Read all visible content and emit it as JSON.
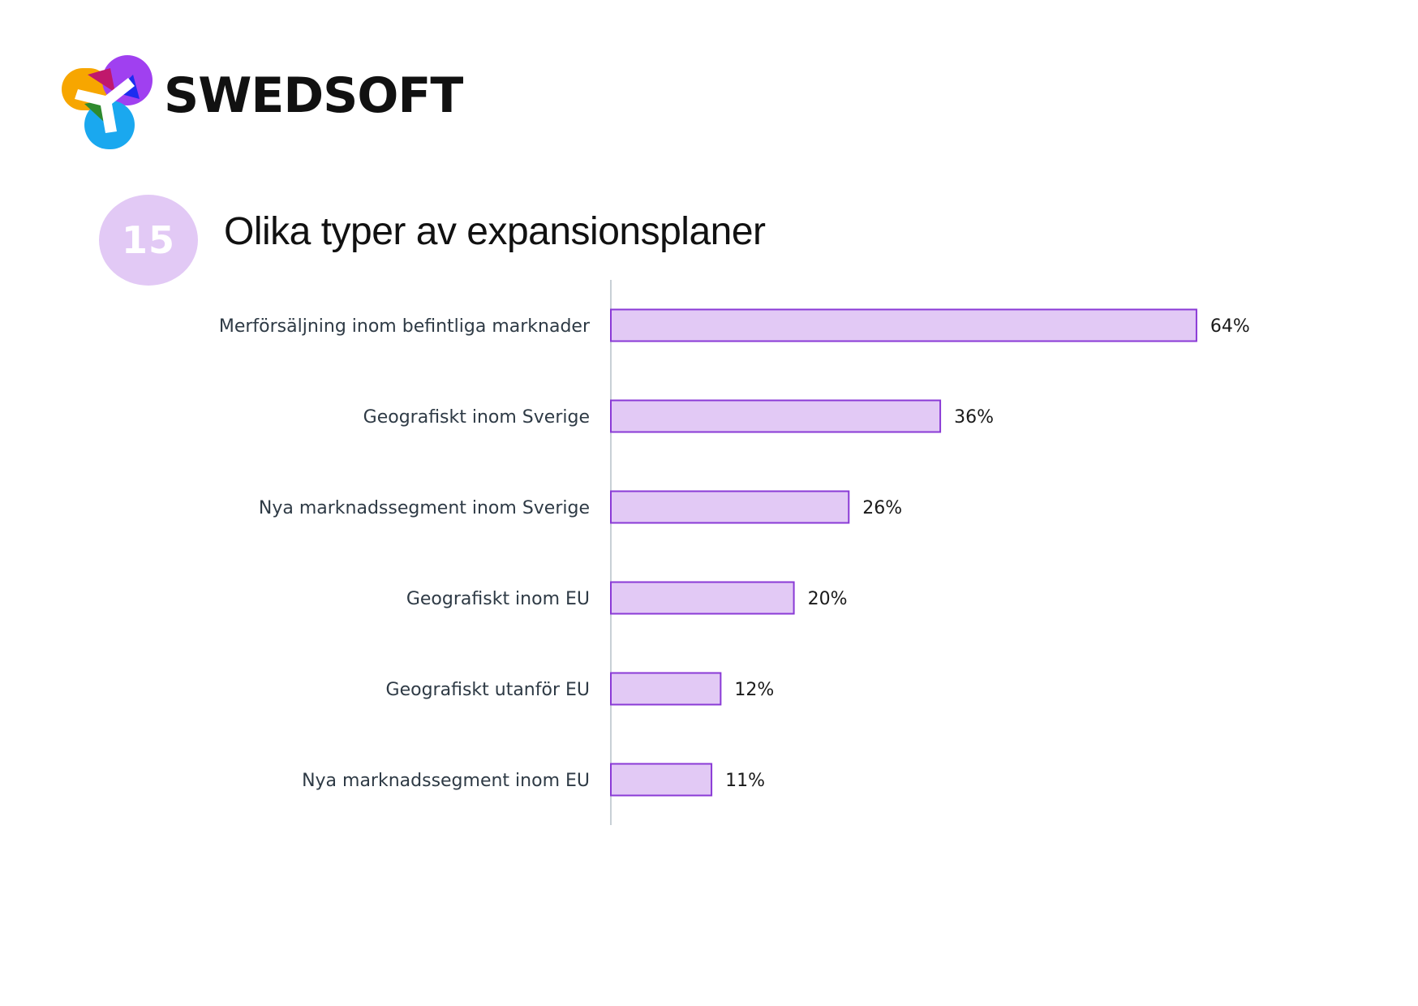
{
  "brand": {
    "name": "SWEDSOFT",
    "logo_colors": {
      "orange": "#f7a600",
      "purple": "#a040f0",
      "magenta": "#c0186c",
      "blue": "#1c2cf0",
      "green": "#2e8a2e",
      "cyan": "#1aa8ef"
    }
  },
  "badge": {
    "number": "15",
    "color": "#e2c9f5"
  },
  "chart_data": {
    "type": "bar",
    "orientation": "horizontal",
    "title": "Olika typer av expansionsplaner",
    "categories": [
      "Merförsäljning inom befintliga marknader",
      "Geografiskt inom Sverige",
      "Nya marknadssegment inom Sverige",
      "Geografiskt inom EU",
      "Geografiskt utanför EU",
      "Nya marknadssegment inom EU"
    ],
    "values": [
      64,
      36,
      26,
      20,
      12,
      11
    ],
    "value_labels": [
      "64%",
      "36%",
      "26%",
      "20%",
      "12%",
      "11%"
    ],
    "unit": "%",
    "xlim": [
      0,
      100
    ],
    "grid": false,
    "legend": "none",
    "bar_fill": "#e2c9f5",
    "bar_stroke": "#8a3ad6",
    "axis_color": "#c8d0d6"
  }
}
